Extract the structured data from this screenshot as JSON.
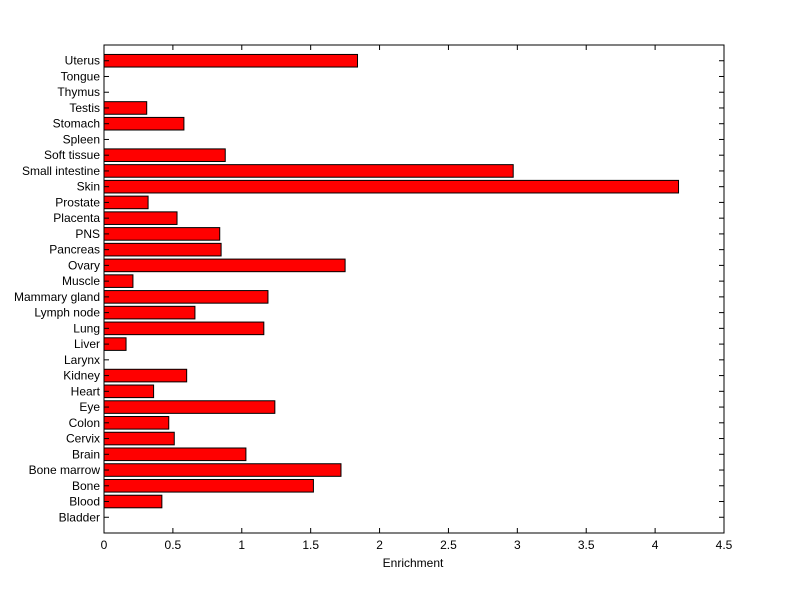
{
  "chart_data": {
    "type": "bar",
    "orientation": "horizontal",
    "title": "",
    "xlabel": "Enrichment",
    "ylabel": "",
    "xlim": [
      0,
      4.5
    ],
    "xticks": [
      "0",
      "0.5",
      "1",
      "1.5",
      "2",
      "2.5",
      "3",
      "3.5",
      "4",
      "4.5"
    ],
    "grid": false,
    "bar_color": "#ff0000",
    "bar_edge_color": "#000000",
    "categories": [
      "Uterus",
      "Tongue",
      "Thymus",
      "Testis",
      "Stomach",
      "Spleen",
      "Soft tissue",
      "Small intestine",
      "Skin",
      "Prostate",
      "Placenta",
      "PNS",
      "Pancreas",
      "Ovary",
      "Muscle",
      "Mammary gland",
      "Lymph node",
      "Lung",
      "Liver",
      "Larynx",
      "Kidney",
      "Heart",
      "Eye",
      "Colon",
      "Cervix",
      "Brain",
      "Bone marrow",
      "Bone",
      "Blood",
      "Bladder"
    ],
    "values": [
      1.84,
      0,
      0,
      0.31,
      0.58,
      0,
      0.88,
      2.97,
      4.17,
      0.32,
      0.53,
      0.84,
      0.85,
      1.75,
      0.21,
      1.19,
      0.66,
      1.16,
      0.16,
      0,
      0.6,
      0.36,
      1.24,
      0.47,
      0.51,
      1.03,
      1.72,
      1.52,
      0.42,
      0
    ]
  }
}
